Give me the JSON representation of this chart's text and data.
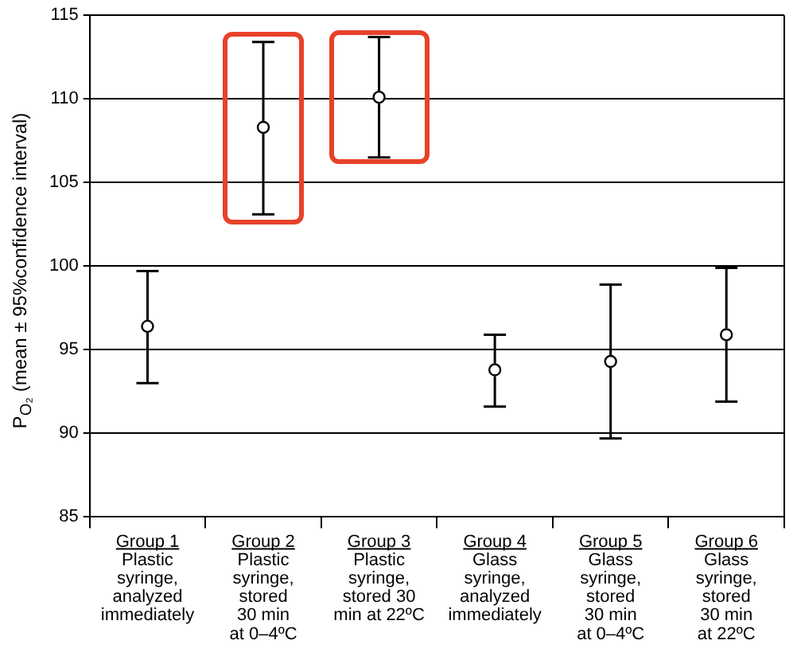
{
  "chart_data": {
    "type": "scatter",
    "ylabel": "P$_{O₂}$ (mean ± 95%confidence interval)",
    "categories": [
      "Group 1\nPlastic\nsyringe,\nanalyzed\nimmediately",
      "Group 2\nPlastic\nsyringe,\nstored\n30 min\nat 0–4ºC",
      "Group 3\nPlastic\nsyringe,\nstored 30\nmin at 22ºC",
      "Group 4\nGlass\nsyringe,\nanalyzed\nimmediately",
      "Group 5\nGlass\nsyringe,\nstored\n30 min\nat 0–4ºC",
      "Group 6\nGlass\nsyringe,\nstored\n30 min\nat 22ºC"
    ],
    "values": [
      96.4,
      108.3,
      110.1,
      93.8,
      94.3,
      95.9
    ],
    "errors": [
      [
        93.0,
        99.7
      ],
      [
        103.1,
        113.4
      ],
      [
        106.5,
        113.7
      ],
      [
        91.6,
        95.9
      ],
      [
        89.7,
        98.9
      ],
      [
        91.9,
        99.9
      ]
    ],
    "color": "#000000",
    "marker": "circle",
    "ylim": [
      85,
      115
    ],
    "yticks": [
      85,
      90,
      95,
      100,
      105,
      110,
      115
    ],
    "grid": "y"
  }
}
